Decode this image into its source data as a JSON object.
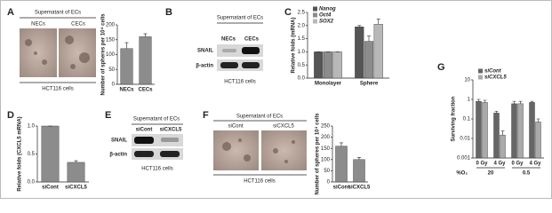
{
  "panel_labels": [
    "A",
    "B",
    "C",
    "D",
    "E",
    "F",
    "G"
  ],
  "panel_a": {
    "header": "Supernatant of ECs",
    "columns": [
      "NECs",
      "CECs"
    ],
    "footer": "HCT116 cells"
  },
  "panel_b": {
    "header": "Supernatant of ECs",
    "columns": [
      "NECs",
      "CECs"
    ],
    "rows": [
      "SNAIL",
      "β-actin"
    ],
    "footer": "HCT116 cells"
  },
  "panel_e": {
    "header": "Supernatant of ECs",
    "columns": [
      "siCont",
      "siCXCL5"
    ],
    "rows": [
      "SNAIL",
      "β-actin"
    ],
    "footer": "HCT116 cells"
  },
  "panel_f": {
    "header": "Supernatant of ECs",
    "columns": [
      "siCont",
      "siCXCL5"
    ],
    "footer": "HCT116 cells"
  },
  "chart_data": [
    {
      "type": "bar",
      "y_label": "Number of spheres per 10⁴ cells",
      "categories": [
        "NECs",
        "CECs"
      ],
      "values": [
        120,
        160
      ],
      "errors": [
        20,
        10
      ],
      "color": "#8c8c8c",
      "ylim": [
        0,
        200
      ],
      "yticks": [
        0,
        50,
        100,
        150,
        200
      ]
    },
    {
      "type": "bar",
      "y_label": "Relative folds (mRNA)",
      "categories": [
        "Monolayer",
        "Sphere"
      ],
      "series": [
        {
          "name": "Nanog",
          "color": "#555555",
          "values": [
            1,
            1.95
          ],
          "errors": [
            0,
            0.05
          ]
        },
        {
          "name": "Oct4",
          "color": "#8c8c8c",
          "values": [
            1,
            1.4
          ],
          "errors": [
            0,
            0.2
          ]
        },
        {
          "name": "SOX2",
          "color": "#b8b8b8",
          "values": [
            1,
            2.05
          ],
          "errors": [
            0,
            0.2
          ]
        }
      ],
      "ylim": [
        0,
        2.5
      ],
      "yticks": [
        {
          "value": 0,
          "label": "0.0"
        },
        {
          "value": 0.5,
          "label": "0.5"
        },
        {
          "value": 1,
          "label": "1.0"
        },
        {
          "value": 1.5,
          "label": "1.5"
        },
        {
          "value": 2,
          "label": "2.0"
        },
        {
          "value": 2.5,
          "label": "2.5"
        }
      ]
    },
    {
      "type": "bar",
      "y_label": "Relative folds (CXCL5 mRNA)",
      "categories": [
        "siCont",
        "siCXCL5"
      ],
      "values": [
        1,
        0.35
      ],
      "errors": [
        0,
        0.03
      ],
      "color": "#8c8c8c",
      "ylim": [
        0,
        1
      ],
      "yticks": [
        {
          "value": 0,
          "label": "0.0"
        },
        {
          "value": 0.5,
          "label": "0.5"
        },
        {
          "value": 1,
          "label": "1.0"
        }
      ]
    },
    {
      "type": "bar",
      "y_label": "Number of spheres per 10⁴ cells",
      "categories": [
        "siCont",
        "siCXCL5"
      ],
      "values": [
        160,
        100
      ],
      "errors": [
        15,
        10
      ],
      "color": "#8c8c8c",
      "ylim": [
        0,
        250
      ],
      "yticks": [
        0,
        50,
        100,
        150,
        200,
        250
      ]
    },
    {
      "type": "bar",
      "y_label": "Surviving fraction",
      "log_scale": true,
      "categories": [
        "0 Gy",
        "4 Gy",
        "0 Gy",
        "4 Gy"
      ],
      "groups": [
        "20",
        "0.5"
      ],
      "group_title": "%O₂",
      "series": [
        {
          "name": "siCont",
          "color": "#666666",
          "values": [
            0.8,
            0.2,
            0.6,
            0.7
          ],
          "errors": [
            0.2,
            0.05,
            0.2,
            0.1
          ]
        },
        {
          "name": "siCXCL5",
          "color": "#aaaaaa",
          "values": [
            0.7,
            0.015,
            0.6,
            0.07
          ],
          "errors": [
            0.2,
            0.01,
            0.2,
            0.03
          ]
        }
      ],
      "ylim": [
        0.001,
        10
      ],
      "yticks": [
        0.001,
        0.01,
        0.1,
        1,
        10
      ]
    }
  ]
}
